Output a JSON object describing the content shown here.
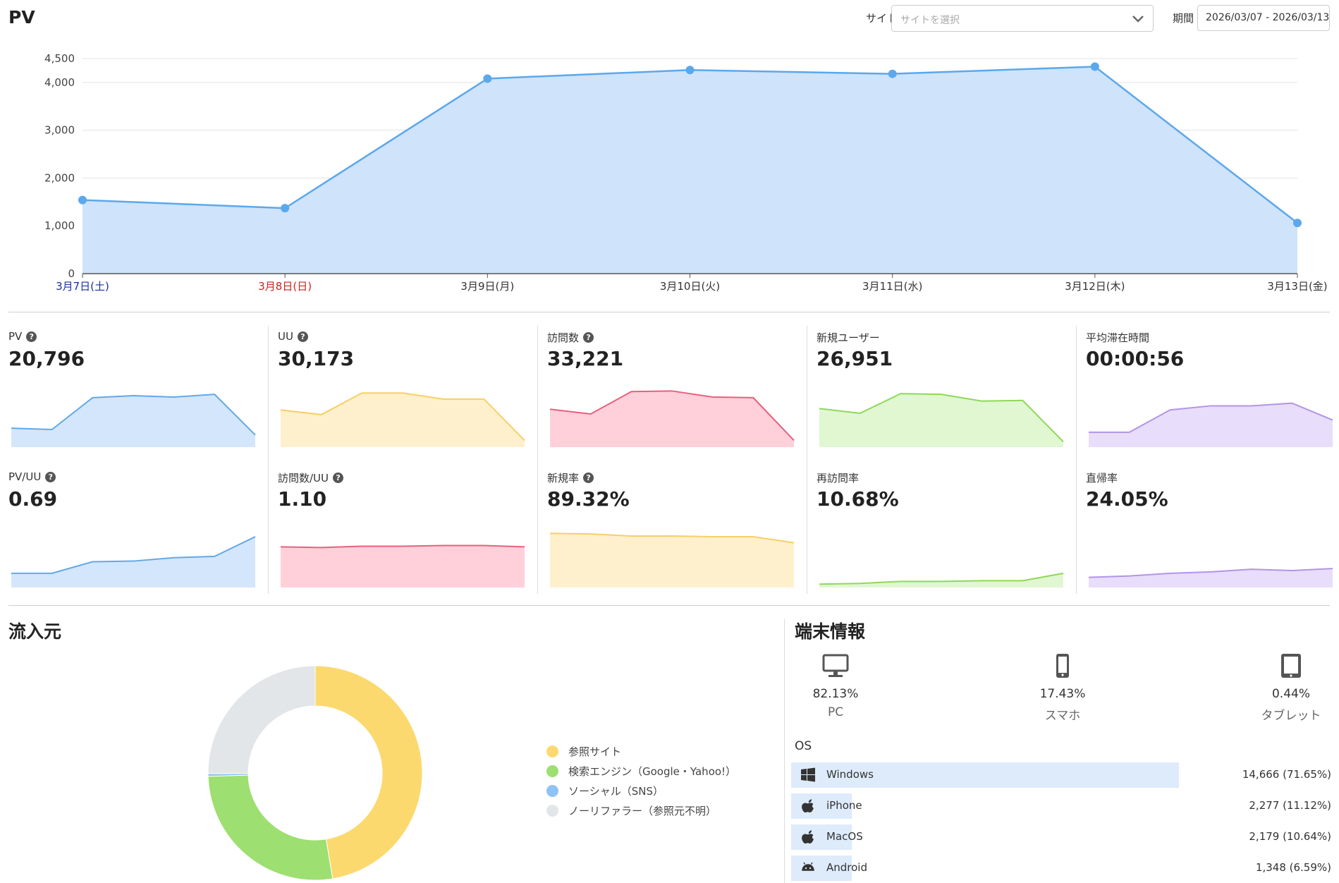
{
  "header": {
    "title": "PV",
    "site_label": "サイト",
    "site_placeholder": "サイトを選択",
    "period_label": "期間",
    "period_value": "2026/03/07 - 2026/03/13"
  },
  "chart_data": [
    {
      "type": "area",
      "title": "PV",
      "categories": [
        "3月7日(土)",
        "3月8日(日)",
        "3月9日(月)",
        "3月10日(火)",
        "3月11日(水)",
        "3月12日(木)",
        "3月13日(金)"
      ],
      "category_colors": [
        "#1a2fa0",
        "#cc2222",
        "#333333",
        "#333333",
        "#333333",
        "#333333",
        "#333333"
      ],
      "values": [
        1540,
        1370,
        4080,
        4260,
        4180,
        4330,
        1060
      ],
      "yticks": [
        0,
        1000,
        2000,
        3000,
        4000,
        4500
      ],
      "ytick_labels": [
        "0",
        "1,000",
        "2,000",
        "3,000",
        "4,000",
        "4,500"
      ],
      "ylim": [
        0,
        4500
      ],
      "color": "#5ba8ec",
      "fill": "#cfe3fa"
    }
  ],
  "metrics": [
    {
      "label": "PV",
      "help": true,
      "value": "20,796",
      "stroke": "#62a8e8",
      "fill": "#d4e6fb",
      "series": [
        28,
        26,
        73,
        76,
        74,
        78,
        18
      ]
    },
    {
      "label": "UU",
      "help": true,
      "value": "30,173",
      "stroke": "#f7cf66",
      "fill": "#fff0cd",
      "series": [
        55,
        48,
        80,
        80,
        71,
        71,
        10
      ]
    },
    {
      "label": "訪問数",
      "help": true,
      "value": "33,221",
      "stroke": "#e8607c",
      "fill": "#ffd0da",
      "series": [
        56,
        49,
        82,
        83,
        74,
        73,
        10
      ]
    },
    {
      "label": "新規ユーザー",
      "help": false,
      "value": "26,951",
      "stroke": "#8fd85a",
      "fill": "#e0f7d2",
      "series": [
        57,
        50,
        79,
        78,
        68,
        69,
        8
      ]
    },
    {
      "label": "平均滞在時間",
      "help": false,
      "value": "00:00:56",
      "stroke": "#b394e8",
      "fill": "#e8ddfa",
      "series": [
        22,
        22,
        55,
        61,
        61,
        65,
        40
      ]
    },
    {
      "label": "PV/UU",
      "help": true,
      "value": "0.69",
      "stroke": "#62a8e8",
      "fill": "#d4e6fb",
      "series": [
        21,
        21,
        38,
        39,
        44,
        46,
        75
      ]
    },
    {
      "label": "訪問数/UU",
      "help": true,
      "value": "1.10",
      "stroke": "#e8607c",
      "fill": "#ffd0da",
      "series": [
        60,
        59,
        61,
        61,
        62,
        62,
        60
      ]
    },
    {
      "label": "新規率",
      "help": true,
      "value": "89.32%",
      "stroke": "#f7cf66",
      "fill": "#fff0cd",
      "series": [
        80,
        79,
        76,
        76,
        75,
        75,
        66
      ]
    },
    {
      "label": "再訪問率",
      "help": false,
      "value": "10.68%",
      "stroke": "#8fd85a",
      "fill": "#e0f7d2",
      "series": [
        5,
        6,
        9,
        9,
        10,
        10,
        21
      ]
    },
    {
      "label": "直帰率",
      "help": false,
      "value": "24.05%",
      "stroke": "#b394e8",
      "fill": "#e8ddfa",
      "series": [
        15,
        17,
        21,
        23,
        27,
        25,
        28
      ]
    }
  ],
  "traffic": {
    "title": "流入元",
    "chart_data": {
      "type": "pie",
      "donut": true,
      "labels": [
        "参照サイト",
        "検索エンジン（Google・Yahoo!）",
        "ソーシャル（SNS）",
        "ノーリファラー（参照元不明）"
      ],
      "values": [
        47.4,
        27.1,
        0.4,
        25.1
      ],
      "colors": [
        "#fcd96f",
        "#9ddf70",
        "#8fc2f5",
        "#e2e6e8"
      ]
    }
  },
  "devices": {
    "title": "端末情報",
    "items": [
      {
        "name": "PC",
        "pct": "82.13%",
        "icon": "desktop-icon"
      },
      {
        "name": "スマホ",
        "pct": "17.43%",
        "icon": "smartphone-icon"
      },
      {
        "name": "タブレット",
        "pct": "0.44%",
        "icon": "tablet-icon"
      }
    ],
    "os_title": "OS",
    "os": [
      {
        "name": "Windows",
        "value": "14,666 (71.65%)",
        "share": 71.65,
        "icon": "windows-icon"
      },
      {
        "name": "iPhone",
        "value": "2,277 (11.12%)",
        "share": 11.12,
        "icon": "apple-icon"
      },
      {
        "name": "MacOS",
        "value": "2,179 (10.64%)",
        "share": 10.64,
        "icon": "apple-icon"
      },
      {
        "name": "Android",
        "value": "1,348 (6.59%)",
        "share": 6.59,
        "icon": "android-icon"
      }
    ]
  }
}
